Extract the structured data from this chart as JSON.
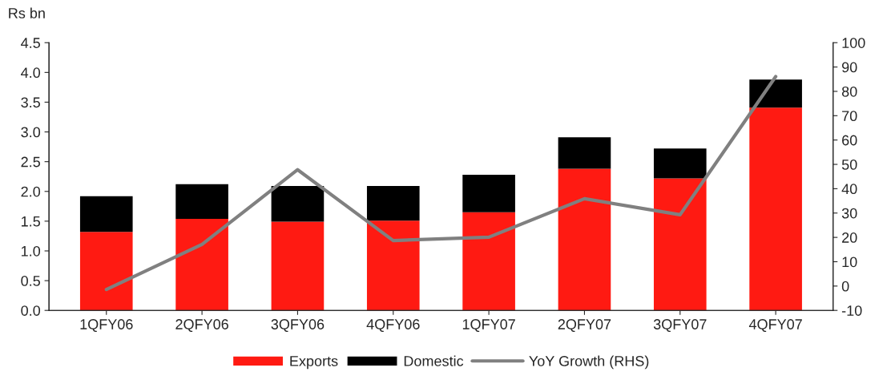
{
  "chart_data": {
    "type": "bar",
    "stacked": true,
    "ylabel": "Rs bn",
    "categories": [
      "1QFY06",
      "2QFY06",
      "3QFY06",
      "4QFY06",
      "1QFY07",
      "2QFY07",
      "3QFY07",
      "4QFY07"
    ],
    "series": [
      {
        "name": "Exports",
        "color": "#ff1a12",
        "values": [
          1.32,
          1.54,
          1.49,
          1.51,
          1.65,
          2.38,
          2.22,
          3.41
        ]
      },
      {
        "name": "Domestic",
        "color": "#000000",
        "values": [
          0.6,
          0.58,
          0.6,
          0.58,
          0.63,
          0.53,
          0.5,
          0.47
        ]
      },
      {
        "name": "YoY Growth (RHS)",
        "type": "line",
        "axis": "y2",
        "color": "#808080",
        "values": [
          -1.4,
          17.1,
          47.8,
          18.7,
          20.1,
          35.9,
          29.3,
          86.1
        ]
      }
    ],
    "ylim": [
      0,
      4.5
    ],
    "yticks": [
      {
        "value": 0,
        "label": "0.0"
      },
      0.5,
      {
        "value": 1,
        "label": "1.0"
      },
      1.5,
      {
        "value": 2,
        "label": "2.0"
      },
      2.5,
      {
        "value": 3,
        "label": "3.0"
      },
      3.5,
      {
        "value": 4,
        "label": "4.0"
      },
      4.5
    ],
    "y2lim": [
      -10,
      100
    ],
    "y2ticks": [
      -10,
      0,
      10,
      20,
      30,
      40,
      50,
      60,
      70,
      80,
      90,
      100
    ],
    "grid": false,
    "legend": "bottom"
  }
}
